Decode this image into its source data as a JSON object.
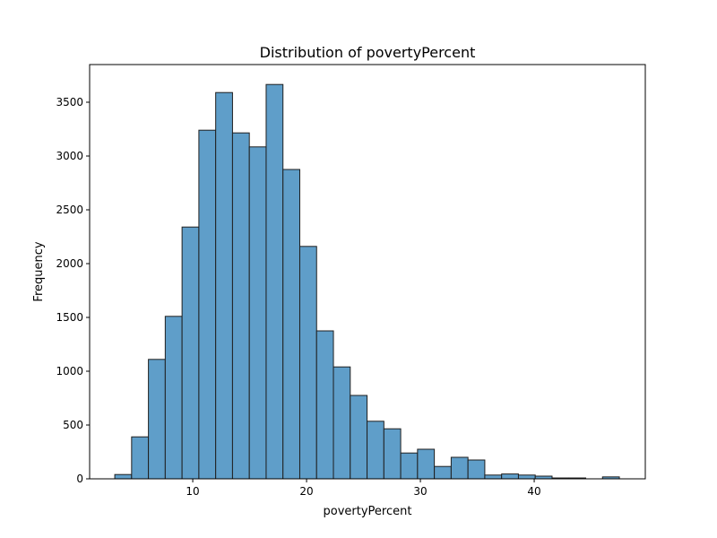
{
  "chart_data": {
    "type": "bar",
    "subtype": "histogram",
    "title": "Distribution of povertyPercent",
    "xlabel": "povertyPercent",
    "ylabel": "Frequency",
    "bin_start": 3.15,
    "bin_end": 47.48,
    "bins": 30,
    "values": [
      40,
      390,
      1110,
      1510,
      2340,
      3240,
      3590,
      3215,
      3085,
      3665,
      2875,
      2160,
      1375,
      1040,
      775,
      535,
      465,
      240,
      275,
      115,
      200,
      175,
      35,
      45,
      35,
      25,
      8,
      8,
      0,
      18
    ],
    "xlim": [
      0.94,
      49.76
    ],
    "ylim": [
      0,
      3850
    ],
    "xticks": [
      10,
      20,
      30,
      40
    ],
    "yticks": [
      0,
      500,
      1000,
      1500,
      2000,
      2500,
      3000,
      3500
    ],
    "grid": false,
    "bar_color": "#5f9ec9",
    "edge_color": "#1f1f1f"
  }
}
